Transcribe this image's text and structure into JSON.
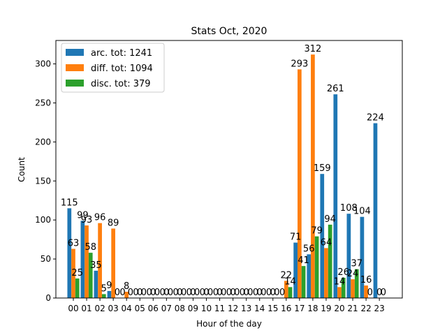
{
  "chart_data": {
    "type": "bar",
    "title": "Stats Oct, 2020",
    "xlabel": "Hour of the day",
    "ylabel": "Count",
    "ylim": [
      0,
      330
    ],
    "yticks": [
      0,
      50,
      100,
      150,
      200,
      250,
      300
    ],
    "grid": false,
    "legend_position": "top-left",
    "categories": [
      "00",
      "01",
      "02",
      "03",
      "04",
      "05",
      "06",
      "07",
      "08",
      "09",
      "10",
      "11",
      "12",
      "13",
      "14",
      "15",
      "16",
      "17",
      "18",
      "19",
      "20",
      "21",
      "22",
      "23"
    ],
    "series": [
      {
        "name": "arc. tot: 1241",
        "color": "#1f77b4",
        "values": [
          115,
          99,
          35,
          9,
          0,
          0,
          0,
          0,
          0,
          0,
          0,
          0,
          0,
          0,
          0,
          0,
          0,
          71,
          56,
          159,
          261,
          108,
          104,
          224
        ]
      },
      {
        "name": "diff. tot: 1094",
        "color": "#ff7f0e",
        "values": [
          63,
          93,
          96,
          89,
          8,
          0,
          0,
          0,
          0,
          0,
          0,
          0,
          0,
          0,
          0,
          0,
          22,
          293,
          312,
          64,
          14,
          24,
          16,
          0
        ]
      },
      {
        "name": "disc. tot: 379",
        "color": "#2ca02c",
        "values": [
          25,
          58,
          5,
          0,
          0,
          0,
          0,
          0,
          0,
          0,
          0,
          0,
          0,
          0,
          0,
          0,
          14,
          41,
          79,
          94,
          26,
          37,
          0,
          0
        ]
      }
    ]
  }
}
